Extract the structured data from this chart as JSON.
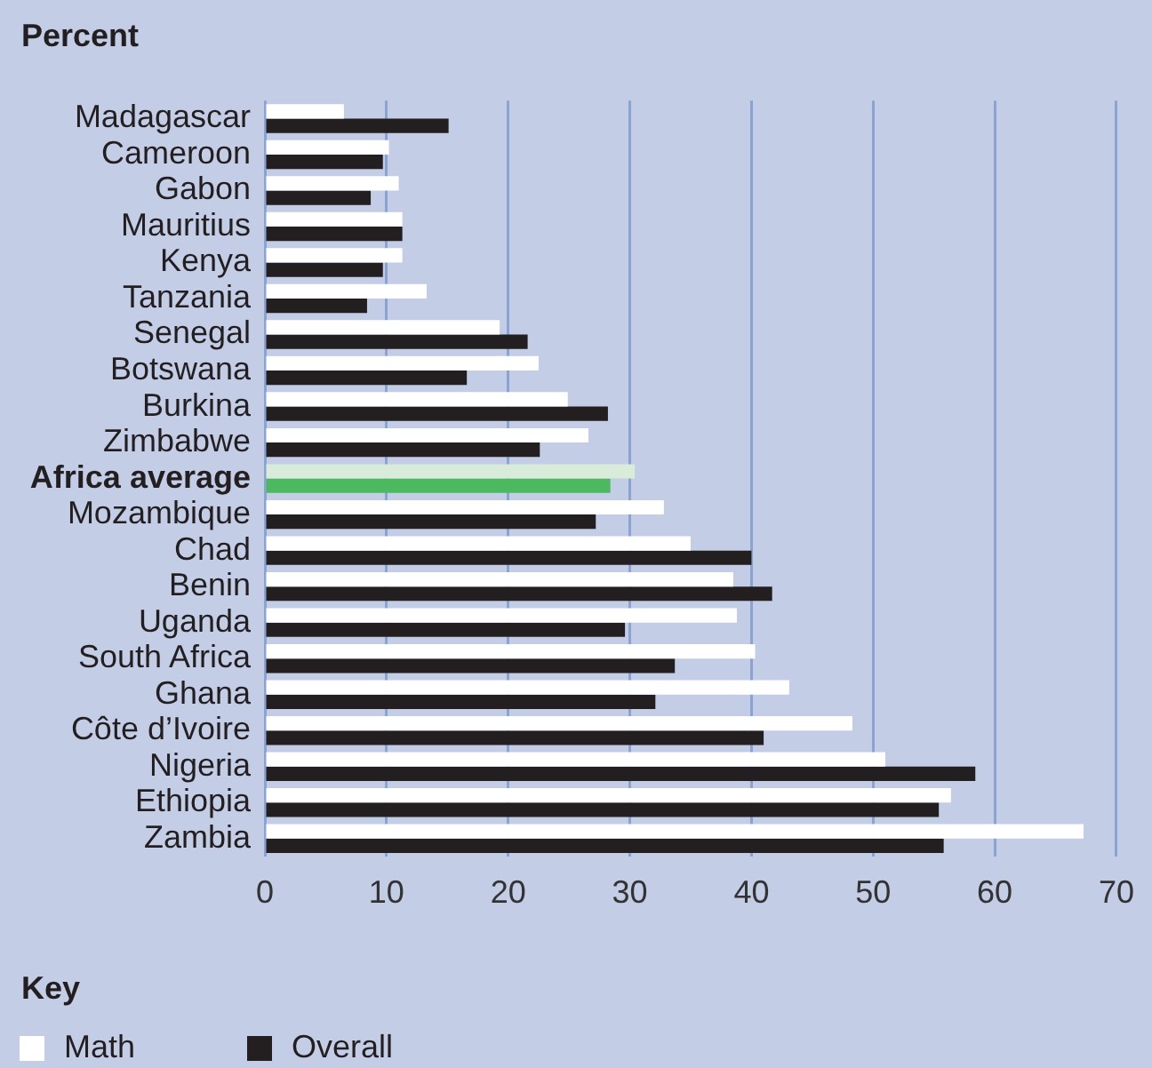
{
  "chart_data": {
    "type": "bar",
    "orientation": "horizontal",
    "title": "Percent",
    "legend_title": "Key",
    "categories": [
      "Madagascar",
      "Cameroon",
      "Gabon",
      "Mauritius",
      "Kenya",
      "Tanzania",
      "Senegal",
      "Botswana",
      "Burkina",
      "Zimbabwe",
      "Africa average",
      "Mozambique",
      "Chad",
      "Benin",
      "Uganda",
      "South Africa",
      "Ghana",
      "Côte d’Ivoire",
      "Nigeria",
      "Ethiopia",
      "Zambia"
    ],
    "series": [
      {
        "name": "Math",
        "color": "#ffffff",
        "colors": [
          "#ffffff",
          "#ffffff",
          "#ffffff",
          "#ffffff",
          "#ffffff",
          "#ffffff",
          "#ffffff",
          "#ffffff",
          "#ffffff",
          "#ffffff",
          "#d9ebd9",
          "#ffffff",
          "#ffffff",
          "#ffffff",
          "#ffffff",
          "#ffffff",
          "#ffffff",
          "#ffffff",
          "#ffffff",
          "#ffffff",
          "#ffffff"
        ],
        "values": [
          6.5,
          10.2,
          11.0,
          11.3,
          11.3,
          13.3,
          19.3,
          22.5,
          24.9,
          26.6,
          30.4,
          32.8,
          35.0,
          38.5,
          38.8,
          40.3,
          43.1,
          48.3,
          51.0,
          56.4,
          67.3
        ]
      },
      {
        "name": "Overall",
        "color": "#231f20",
        "colors": [
          "#231f20",
          "#231f20",
          "#231f20",
          "#231f20",
          "#231f20",
          "#231f20",
          "#231f20",
          "#231f20",
          "#231f20",
          "#231f20",
          "#4cb960",
          "#231f20",
          "#231f20",
          "#231f20",
          "#231f20",
          "#231f20",
          "#231f20",
          "#231f20",
          "#231f20",
          "#231f20",
          "#231f20"
        ],
        "values": [
          15.1,
          9.7,
          8.7,
          11.3,
          9.7,
          8.4,
          21.6,
          16.6,
          28.2,
          22.6,
          28.4,
          27.2,
          40.0,
          41.7,
          29.6,
          33.7,
          32.1,
          41.0,
          58.4,
          55.4,
          55.8
        ]
      }
    ],
    "xlim": [
      0,
      70
    ],
    "xticks": [
      0,
      10,
      20,
      30,
      40,
      50,
      60,
      70
    ],
    "grid": "x",
    "legend": "bottom"
  }
}
